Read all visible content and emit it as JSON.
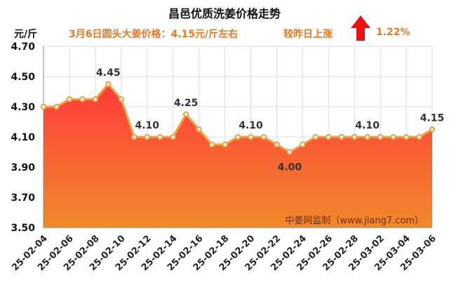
{
  "chart_data": {
    "type": "area",
    "title": "昌邑优质洗姜价格走势",
    "subtitle": "3月6日圆头大姜价格：4.15元/斤左右",
    "change_label": "较昨日上涨",
    "change_value": "1.22%",
    "ylabel": "元/斤",
    "xlabel": "",
    "ylim": [
      3.5,
      4.7
    ],
    "y_ticks": [
      "4.70",
      "4.50",
      "4.30",
      "4.10",
      "3.90",
      "3.70",
      "3.50"
    ],
    "x_tick_labels": [
      "25-02-04",
      "25-02-06",
      "25-02-08",
      "25-02-10",
      "25-02-12",
      "25-02-14",
      "25-02-16",
      "25-02-18",
      "25-02-20",
      "25-02-22",
      "25-02-24",
      "25-02-26",
      "25-02-28",
      "25-03-02",
      "25-03-04",
      "25-03-06"
    ],
    "x": [
      "25-02-04",
      "25-02-05",
      "25-02-06",
      "25-02-07",
      "25-02-08",
      "25-02-09",
      "25-02-10",
      "25-02-11",
      "25-02-12",
      "25-02-13",
      "25-02-14",
      "25-02-15",
      "25-02-16",
      "25-02-17",
      "25-02-18",
      "25-02-19",
      "25-02-20",
      "25-02-21",
      "25-02-22",
      "25-02-23",
      "25-02-24",
      "25-02-25",
      "25-02-26",
      "25-02-27",
      "25-02-28",
      "25-03-01",
      "25-03-02",
      "25-03-03",
      "25-03-04",
      "25-03-05",
      "25-03-06"
    ],
    "values": [
      4.3,
      4.3,
      4.35,
      4.35,
      4.35,
      4.45,
      4.35,
      4.1,
      4.1,
      4.1,
      4.1,
      4.25,
      4.15,
      4.05,
      4.05,
      4.1,
      4.1,
      4.1,
      4.05,
      4.0,
      4.05,
      4.1,
      4.1,
      4.1,
      4.1,
      4.1,
      4.1,
      4.1,
      4.1,
      4.1,
      4.15
    ],
    "data_labels": [
      {
        "index": 5,
        "text": "4.45"
      },
      {
        "index": 8,
        "text": "4.10"
      },
      {
        "index": 11,
        "text": "4.25"
      },
      {
        "index": 16,
        "text": "4.10"
      },
      {
        "index": 19,
        "text": "4.00"
      },
      {
        "index": 25,
        "text": "4.10"
      },
      {
        "index": 30,
        "text": "4.15"
      }
    ],
    "watermark": "中姜网监制（www.jiang7.com）",
    "grid": true,
    "colors": {
      "line": "#f0a040",
      "marker_fill": "#ffffff",
      "area_top": "#ff3b3b",
      "area_bottom": "#f08a2a",
      "title": "#111111",
      "accent": "#ee7722",
      "arrow": "#ee1111",
      "grid": "#dddddd"
    }
  }
}
